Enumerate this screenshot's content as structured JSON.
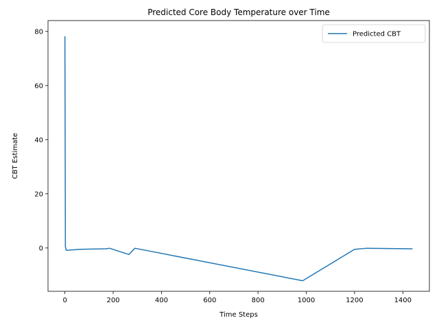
{
  "chart_data": {
    "type": "line",
    "title": "Predicted Core Body Temperature over Time",
    "xlabel": "Time Steps",
    "ylabel": "CBT Estimate",
    "xlim": [
      -70,
      1510
    ],
    "ylim": [
      -16,
      84
    ],
    "xticks": [
      0,
      200,
      400,
      600,
      800,
      1000,
      1200,
      1400
    ],
    "yticks": [
      0,
      20,
      40,
      60,
      80
    ],
    "grid": false,
    "legend_position": "top-right",
    "series": [
      {
        "name": "Predicted CBT",
        "color": "#1f77b4",
        "x": [
          0,
          1,
          2,
          5,
          15,
          60,
          170,
          185,
          265,
          290,
          985,
          1200,
          1250,
          1440
        ],
        "y": [
          78.2,
          40,
          0.5,
          -0.8,
          -0.8,
          -0.5,
          -0.3,
          -0.1,
          -2.4,
          -0.1,
          -12.1,
          -0.5,
          -0.1,
          -0.3
        ]
      }
    ]
  }
}
